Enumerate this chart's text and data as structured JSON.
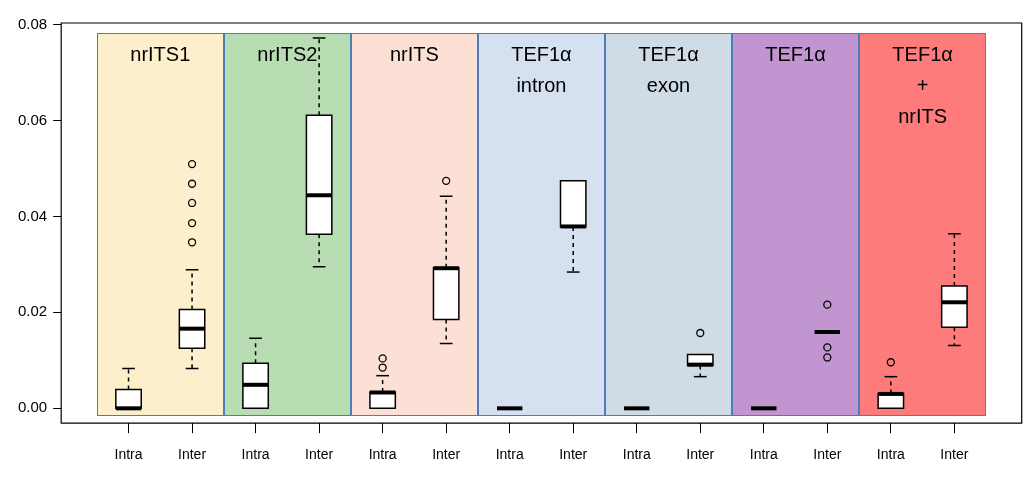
{
  "chart_data": {
    "type": "box",
    "categories": [
      "Intra",
      "Inter",
      "Intra",
      "Inter",
      "Intra",
      "Inter",
      "Intra",
      "Inter",
      "Intra",
      "Inter",
      "Intra",
      "Inter",
      "Intra",
      "Inter"
    ],
    "ylim": [
      -0.0031,
      0.0803
    ],
    "yticks": [
      {
        "value": 0,
        "label": "0.00"
      },
      {
        "value": 0.02,
        "label": "0.02"
      },
      {
        "value": 0.04,
        "label": "0.04"
      },
      {
        "value": 0.06,
        "label": "0.06"
      },
      {
        "value": 0.08,
        "label": "0.08"
      }
    ],
    "boxes": [
      {
        "low": 0,
        "q1": 0,
        "median": 0,
        "q3": 0.0039,
        "high": 0.0083
      },
      {
        "low": 0.0083,
        "q1": 0.0125,
        "median": 0.0166,
        "q3": 0.0206,
        "high": 0.0289,
        "outliers": [
          0.0346,
          0.0386,
          0.0428,
          0.0468,
          0.0509
        ]
      },
      {
        "low": 0,
        "q1": 0,
        "median": 0.0049,
        "q3": 0.0094,
        "high": 0.0146
      },
      {
        "low": 0.0295,
        "q1": 0.0363,
        "median": 0.0444,
        "q3": 0.0611,
        "high": 0.0772
      },
      {
        "low": 0,
        "q1": 0,
        "median": 0.0033,
        "q3": 0.0034,
        "high": 0.0068,
        "outliers": [
          0.0085,
          0.0104
        ]
      },
      {
        "low": 0.0135,
        "q1": 0.0185,
        "median": 0.0292,
        "q3": 0.0293,
        "high": 0.0442,
        "outliers": [
          0.0474
        ]
      },
      {
        "low": 0,
        "q1": 0,
        "median": 0,
        "q3": 0,
        "high": 0
      },
      {
        "low": 0.0284,
        "q1": 0.0378,
        "median": 0.0379,
        "q3": 0.0474,
        "high": 0.0474
      },
      {
        "low": 0,
        "q1": 0,
        "median": 0,
        "q3": 0,
        "high": 0
      },
      {
        "low": 0.0066,
        "q1": 0.0089,
        "median": 0.0091,
        "q3": 0.0112,
        "high": 0.0112,
        "outliers": [
          0.0157
        ]
      },
      {
        "low": 0,
        "q1": 0,
        "median": 0,
        "q3": 0,
        "high": 0
      },
      {
        "low": 0.0159,
        "q1": 0.0159,
        "median": 0.0159,
        "q3": 0.0159,
        "high": 0.0159,
        "outliers": [
          0.0106,
          0.0127,
          0.0216
        ]
      },
      {
        "low": 0,
        "q1": 0,
        "median": 0.003,
        "q3": 0.0031,
        "high": 0.0066,
        "outliers": [
          0.0096
        ]
      },
      {
        "low": 0.0131,
        "q1": 0.0169,
        "median": 0.0221,
        "q3": 0.0255,
        "high": 0.0364
      }
    ],
    "annotations": [
      "nrITS1",
      "nrITS2",
      "nrITS",
      "TEF1α\nintron",
      "TEF1α\nexon",
      "TEF1α",
      "TEF1α\n+\nnrITS"
    ],
    "grid": false,
    "legend": false
  }
}
